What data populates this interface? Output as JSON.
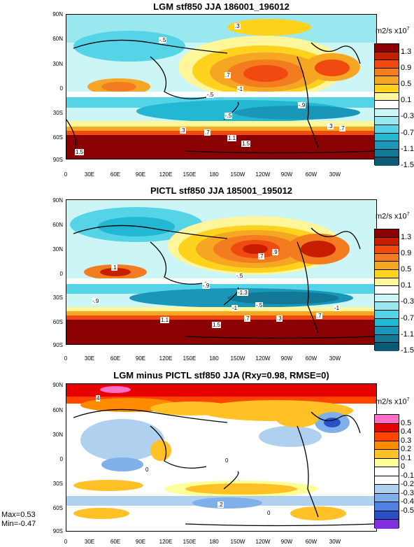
{
  "y_ticks": [
    "90N",
    "60N",
    "30N",
    "0",
    "30S",
    "60S",
    "90S"
  ],
  "x_ticks": [
    "0",
    "30E",
    "60E",
    "90E",
    "120E",
    "150E",
    "180",
    "150W",
    "120W",
    "90W",
    "60W",
    "30W"
  ],
  "panels": [
    {
      "title": "LGM stf850 JJA 186001_196012",
      "units_base": "m2/s x10",
      "units_exp": "7",
      "colorbar": {
        "labels": [
          "1.3",
          "0.9",
          "0.5",
          "0.1",
          "-0.3",
          "-0.7",
          "-1.1",
          "-1.5"
        ],
        "colors": [
          "#8b0000",
          "#c81e00",
          "#f04a10",
          "#f47c20",
          "#f5a623",
          "#ffd21e",
          "#fff59a",
          "#ffffff",
          "#ccf5f5",
          "#99e8ef",
          "#55d4e8",
          "#22b8d4",
          "#1a96b8",
          "#127896",
          "#0c5a74"
        ]
      },
      "contour_labels": [
        ".3",
        "-.5",
        ".7",
        "-1",
        "-.5",
        "-.9",
        "-.5",
        ".3",
        ".7",
        "1.1",
        "1.5",
        ".3",
        ".7",
        "1.5"
      ]
    },
    {
      "title": "PICTL stf850 JJA 185001_195012",
      "units_base": "m2/s x10",
      "units_exp": "7",
      "colorbar": {
        "labels": [
          "1.3",
          "0.9",
          "0.5",
          "0.1",
          "-0.3",
          "-0.7",
          "-1.1",
          "-1.5"
        ],
        "colors": [
          "#8b0000",
          "#c81e00",
          "#f04a10",
          "#f47c20",
          "#f5a623",
          "#ffd21e",
          "#fff59a",
          "#ffffff",
          "#ccf5f5",
          "#99e8ef",
          "#55d4e8",
          "#22b8d4",
          "#1a96b8",
          "#127896",
          "#0c5a74"
        ]
      },
      "contour_labels": [
        ".7",
        ".9",
        ".1",
        "-.5",
        "-.9",
        "-1.3",
        "-.9",
        "-1",
        "-.5",
        "-1",
        "1.1",
        "1.5",
        ".7",
        ".3",
        ".7"
      ]
    },
    {
      "title": "LGM minus PICTL stf850 JJA (Rxy=0.98, RMSE=0)",
      "units_base": "m2/s x10",
      "units_exp": "7",
      "colorbar": {
        "labels": [
          "0.5",
          "0.4",
          "0.3",
          "0.2",
          "0.1",
          "0",
          "-0.1",
          "-0.2",
          "-0.3",
          "-0.4",
          "-0.5"
        ],
        "colors": [
          "#ff6ec7",
          "#e60000",
          "#ff4500",
          "#ff8c00",
          "#ffc125",
          "#ffff99",
          "#ffffff",
          "#ffffff",
          "#b0d0f0",
          "#80b0ea",
          "#5080e0",
          "#2a50c8",
          "#7f2fe0"
        ]
      },
      "contour_labels": [
        "4",
        "0",
        "0",
        ".2",
        "0"
      ],
      "stats": {
        "max": "Max=0.53",
        "min": "Min=-0.47"
      }
    }
  ]
}
